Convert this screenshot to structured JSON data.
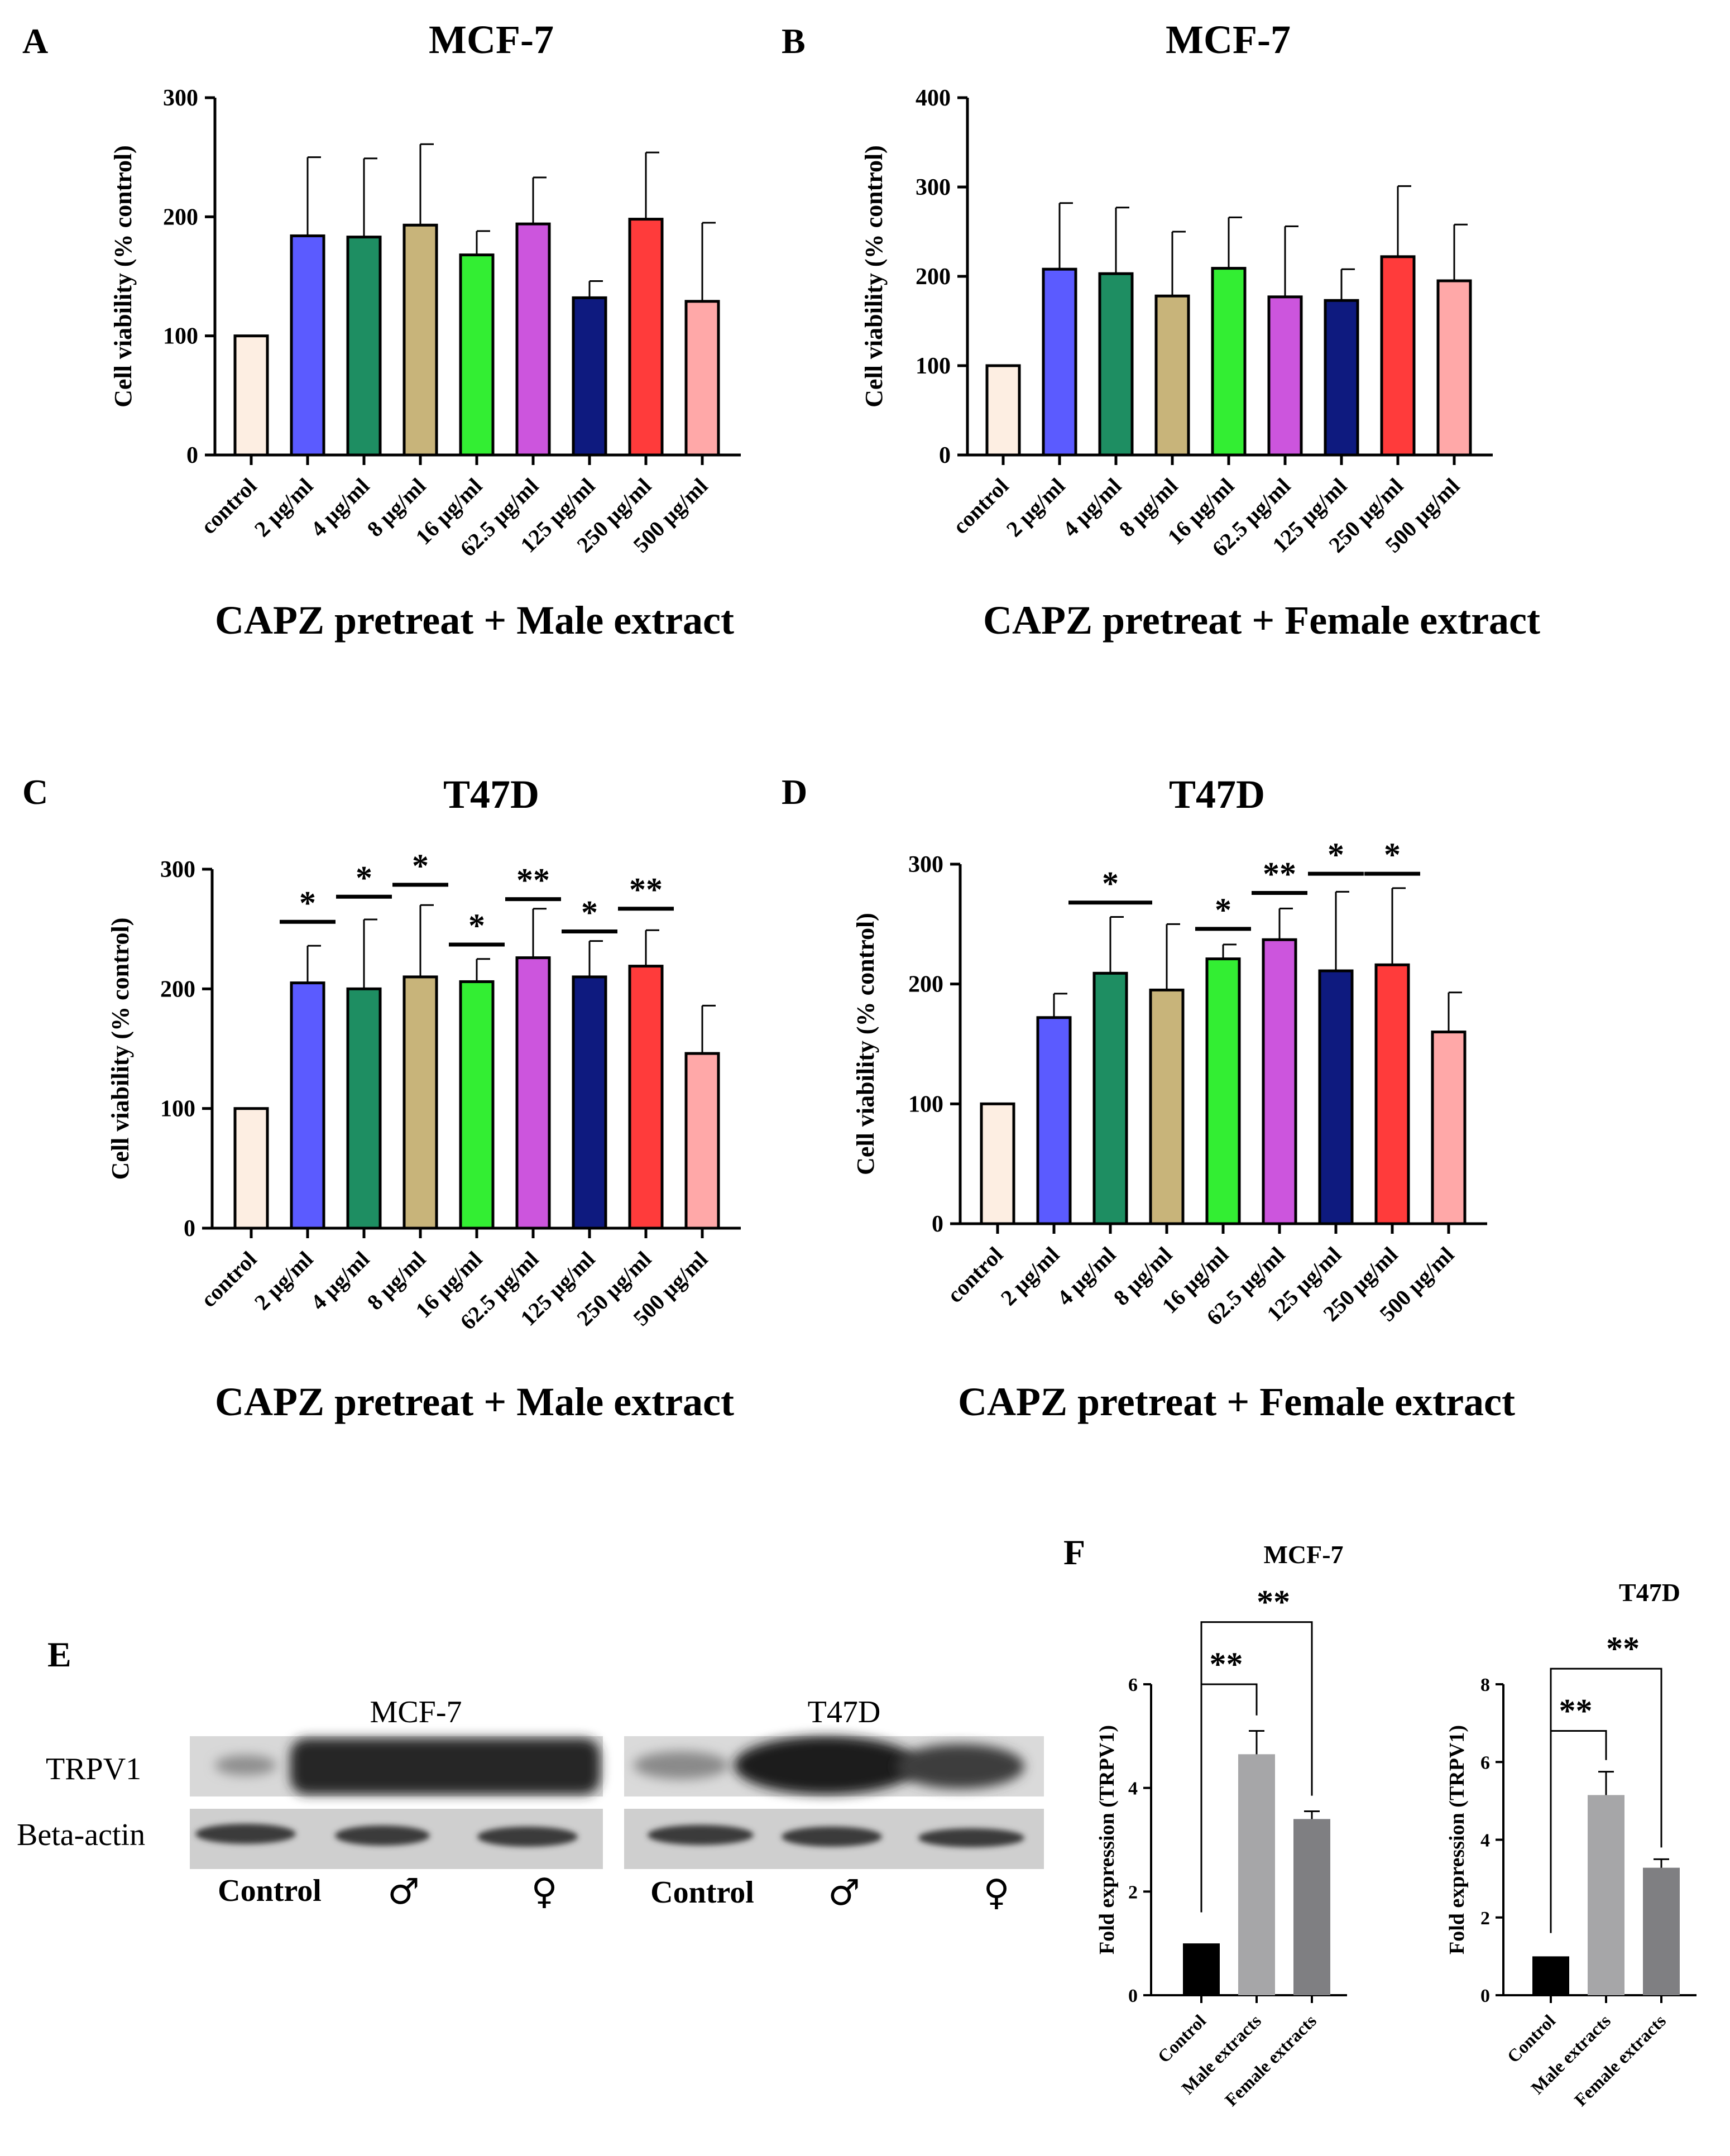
{
  "figure": {
    "panel_E": {
      "label": "E",
      "groups": [
        {
          "name": "MCF-7",
          "lanes": [
            "Control",
            "♂",
            "♀"
          ]
        },
        {
          "name": "T47D",
          "lanes": [
            "Control",
            "♂",
            "♀"
          ]
        }
      ],
      "rows": [
        "TRPV1",
        "Beta-actin"
      ]
    },
    "panel_F_label": "F"
  },
  "chart_data": [
    {
      "id": "A",
      "label": "A",
      "type": "bar",
      "title": "MCF-7",
      "ylabel": "Cell viability (% control)",
      "xlabel": "CAPZ pretreat + Male extract",
      "ylim": [
        0,
        300
      ],
      "yticks": [
        0,
        100,
        200,
        300
      ],
      "categories": [
        "control",
        "2 µg/ml",
        "4 µg/ml",
        "8 µg/ml",
        "16 µg/ml",
        "62.5 µg/ml",
        "125 µg/ml",
        "250 µg/ml",
        "500 µg/ml"
      ],
      "values": [
        100,
        184,
        183,
        193,
        168,
        194,
        132,
        198,
        129
      ],
      "errors": [
        0,
        66,
        66,
        68,
        20,
        39,
        14,
        56,
        66
      ],
      "colors": [
        "#FDEEE2",
        "#5B5BFF",
        "#1E8E62",
        "#C8B47A",
        "#33EE33",
        "#CC55DD",
        "#0E1A7F",
        "#FF3B3B",
        "#FFA8A8"
      ],
      "significance": []
    },
    {
      "id": "B",
      "label": "B",
      "type": "bar",
      "title": "MCF-7",
      "ylabel": "Cell viability (% control)",
      "xlabel": "CAPZ pretreat + Female extract",
      "ylim": [
        0,
        400
      ],
      "yticks": [
        0,
        100,
        200,
        300,
        400
      ],
      "categories": [
        "control",
        "2 µg/ml",
        "4 µg/ml",
        "8 µg/ml",
        "16 µg/ml",
        "62.5 µg/ml",
        "125 µg/ml",
        "250 µg/ml",
        "500 µg/ml"
      ],
      "values": [
        100,
        208,
        203,
        178,
        209,
        177,
        173,
        222,
        195
      ],
      "errors": [
        0,
        74,
        74,
        72,
        57,
        79,
        35,
        79,
        63
      ],
      "colors": [
        "#FDEEE2",
        "#5B5BFF",
        "#1E8E62",
        "#C8B47A",
        "#33EE33",
        "#CC55DD",
        "#0E1A7F",
        "#FF3B3B",
        "#FFA8A8"
      ],
      "significance": []
    },
    {
      "id": "C",
      "label": "C",
      "type": "bar",
      "title": "T47D",
      "ylabel": "Cell viability (% control)",
      "xlabel": "CAPZ pretreat + Male extract",
      "ylim": [
        0,
        300
      ],
      "yticks": [
        0,
        100,
        200,
        300
      ],
      "categories": [
        "control",
        "2 µg/ml",
        "4 µg/ml",
        "8 µg/ml",
        "16 µg/ml",
        "62.5 µg/ml",
        "125 µg/ml",
        "250 µg/ml",
        "500 µg/ml"
      ],
      "values": [
        100,
        205,
        200,
        210,
        206,
        226,
        210,
        219,
        146
      ],
      "errors": [
        0,
        31,
        58,
        60,
        19,
        41,
        30,
        30,
        40
      ],
      "colors": [
        "#FDEEE2",
        "#5B5BFF",
        "#1E8E62",
        "#C8B47A",
        "#33EE33",
        "#CC55DD",
        "#0E1A7F",
        "#FF3B3B",
        "#FFA8A8"
      ],
      "significance": [
        {
          "index": 1,
          "text": "*",
          "line_y": 256
        },
        {
          "index": 2,
          "text": "*",
          "line_y": 277
        },
        {
          "index": 3,
          "text": "*",
          "line_y": 287
        },
        {
          "index": 4,
          "text": "*",
          "line_y": 237
        },
        {
          "index": 5,
          "text": "**",
          "line_y": 275
        },
        {
          "index": 6,
          "text": "*",
          "line_y": 248
        },
        {
          "index": 7,
          "text": "**",
          "line_y": 267
        }
      ]
    },
    {
      "id": "D",
      "label": "D",
      "type": "bar",
      "title": "T47D",
      "ylabel": "Cell viability (% control)",
      "xlabel": "CAPZ pretreat + Female extract",
      "ylim": [
        0,
        300
      ],
      "yticks": [
        0,
        100,
        200,
        300
      ],
      "categories": [
        "control",
        "2 µg/ml",
        "4 µg/ml",
        "8 µg/ml",
        "16 µg/ml",
        "62.5 µg/ml",
        "125 µg/ml",
        "250 µg/ml",
        "500 µg/ml"
      ],
      "values": [
        100,
        172,
        209,
        195,
        221,
        237,
        211,
        216,
        160
      ],
      "errors": [
        0,
        20,
        47,
        55,
        12,
        26,
        66,
        64,
        33
      ],
      "colors": [
        "#FDEEE2",
        "#5B5BFF",
        "#1E8E62",
        "#C8B47A",
        "#33EE33",
        "#CC55DD",
        "#0E1A7F",
        "#FF3B3B",
        "#FFA8A8"
      ],
      "significance": [
        {
          "index": 2,
          "text": "*",
          "line_y": 268,
          "span": 2
        },
        {
          "index": 4,
          "text": "*",
          "line_y": 246
        },
        {
          "index": 5,
          "text": "**",
          "line_y": 276
        },
        {
          "index": 6,
          "text": "*",
          "line_y": 292
        },
        {
          "index": 7,
          "text": "*",
          "line_y": 292
        }
      ]
    },
    {
      "id": "F1",
      "label": "",
      "type": "bar",
      "title": "MCF-7",
      "ylabel": "Fold expression (TRPV1)",
      "xlabel": "",
      "ylim": [
        0,
        6
      ],
      "yticks": [
        0,
        2,
        4,
        6
      ],
      "categories": [
        "Control",
        "Male extracts",
        "Female extracts"
      ],
      "values": [
        1.0,
        4.65,
        3.4
      ],
      "errors": [
        0,
        0.45,
        0.15
      ],
      "colors": [
        "#000000",
        "#A6A6A8",
        "#7F7F82"
      ],
      "brackets": [
        {
          "from": 0,
          "to": 1,
          "text": "**",
          "y": 6.0
        },
        {
          "from": 0,
          "to": 2,
          "text": "**",
          "y": 7.2
        }
      ]
    },
    {
      "id": "F2",
      "label": "",
      "type": "bar",
      "title": "T47D",
      "ylabel": "Fold expression (TRPV1)",
      "xlabel": "",
      "ylim": [
        0,
        8
      ],
      "yticks": [
        0,
        2,
        4,
        6,
        8
      ],
      "categories": [
        "Control",
        "Male extracts",
        "Female extracts"
      ],
      "values": [
        1.0,
        5.15,
        3.28
      ],
      "errors": [
        0,
        0.6,
        0.22
      ],
      "colors": [
        "#000000",
        "#A6A6A8",
        "#7F7F82"
      ],
      "brackets": [
        {
          "from": 0,
          "to": 1,
          "text": "**",
          "y": 6.8
        },
        {
          "from": 0,
          "to": 2,
          "text": "**",
          "y": 8.4
        }
      ]
    }
  ]
}
